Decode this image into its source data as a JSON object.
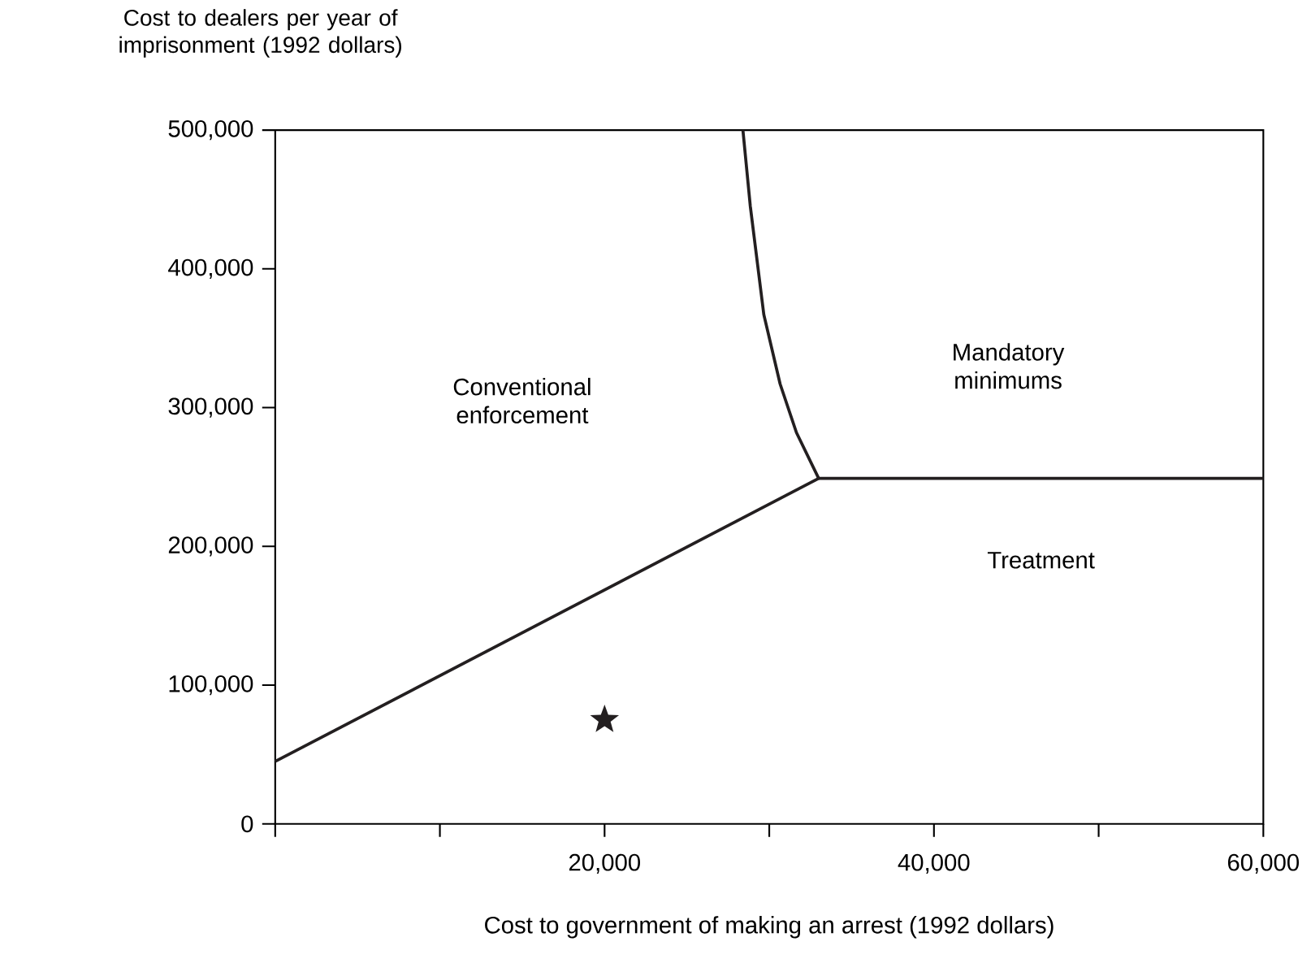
{
  "chart_data": {
    "type": "line",
    "ylabel": "Cost to dealers per year of imprisonment (1992 dollars)",
    "xlabel": "Cost to government of making an arrest (1992 dollars)",
    "series": [
      {
        "color": "#231f20",
        "x": [
          0,
          33000
        ],
        "values": [
          45000,
          249000
        ]
      },
      {
        "color": "#231f20",
        "x": [
          33000,
          60000
        ],
        "values": [
          249000,
          249000
        ]
      },
      {
        "color": "#231f20",
        "x": [
          28400,
          28850,
          29670,
          30660,
          31650,
          33000
        ],
        "values": [
          500000,
          445000,
          367000,
          317000,
          282000,
          249000
        ]
      },
      {
        "type": "scatter",
        "marker": "star",
        "color": "#231f20",
        "x": [
          20000
        ],
        "values": [
          75000
        ]
      }
    ],
    "annotations": [
      "Conventional enforcement",
      "Mandatory minimums",
      "Treatment"
    ],
    "xlim": [
      0,
      60000
    ],
    "ylim": [
      0,
      500000
    ],
    "xticks": [
      {
        "value": 0,
        "label": null
      },
      {
        "value": 10000,
        "label": null
      },
      {
        "value": 20000,
        "label": "20,000"
      },
      {
        "value": 30000,
        "label": null
      },
      {
        "value": 40000,
        "label": "40,000"
      },
      {
        "value": 50000,
        "label": null
      },
      {
        "value": 60000,
        "label": "60,000"
      }
    ],
    "yticks": [
      {
        "value": 0,
        "label": "0"
      },
      {
        "value": 100000,
        "label": "100,000"
      },
      {
        "value": 200000,
        "label": "200,000"
      },
      {
        "value": 300000,
        "label": "300,000"
      },
      {
        "value": 400000,
        "label": "400,000"
      },
      {
        "value": 500000,
        "label": "500,000"
      }
    ],
    "grid": false,
    "line_style": "solid"
  }
}
